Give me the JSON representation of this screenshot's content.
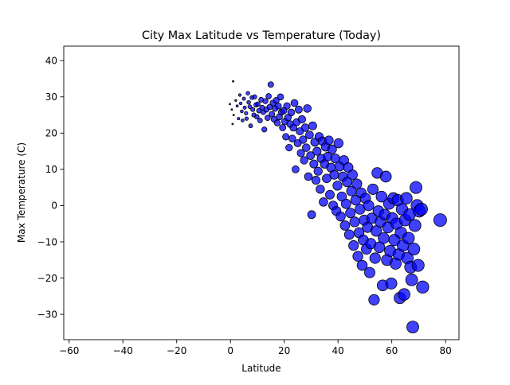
{
  "chart_data": {
    "type": "scatter",
    "title": "City Max Latitude vs Temperature (Today)",
    "xlabel": "Latitude",
    "ylabel": "Max Temperature (C)",
    "xlim": [
      -62,
      85
    ],
    "ylim": [
      -37,
      44
    ],
    "xticks": [
      -60,
      -40,
      -20,
      0,
      20,
      40,
      60,
      80
    ],
    "yticks": [
      -30,
      -20,
      -10,
      0,
      10,
      20,
      30,
      40
    ],
    "grid": false,
    "marker_color": "#0000ff",
    "marker_edge": "#000000",
    "marker_size_encodes": "latitude",
    "points": [
      [
        1,
        34.3
      ],
      [
        -0.2,
        28
      ],
      [
        0.5,
        26.5
      ],
      [
        1.2,
        25
      ],
      [
        0.8,
        22.5
      ],
      [
        2,
        29
      ],
      [
        2.5,
        27.5
      ],
      [
        3,
        24
      ],
      [
        3.5,
        30.5
      ],
      [
        3.8,
        28.2
      ],
      [
        4.2,
        26
      ],
      [
        4.5,
        23.5
      ],
      [
        5,
        29.5
      ],
      [
        5.3,
        27
      ],
      [
        5.8,
        25.5
      ],
      [
        6,
        24
      ],
      [
        6.5,
        31
      ],
      [
        6.8,
        28.5
      ],
      [
        7.2,
        27.3
      ],
      [
        7.5,
        22
      ],
      [
        8,
        29.8
      ],
      [
        8.3,
        26.5
      ],
      [
        8.7,
        25
      ],
      [
        9,
        30
      ],
      [
        9.5,
        27.8
      ],
      [
        9.8,
        24.5
      ],
      [
        10.2,
        28
      ],
      [
        10.6,
        26.2
      ],
      [
        11,
        23.5
      ],
      [
        11.4,
        29.2
      ],
      [
        11.8,
        27
      ],
      [
        12.2,
        25.8
      ],
      [
        12.6,
        21
      ],
      [
        13,
        28.8
      ],
      [
        13.4,
        26.5
      ],
      [
        13.8,
        24.2
      ],
      [
        14.2,
        30.2
      ],
      [
        14.6,
        27.2
      ],
      [
        15,
        33.4
      ],
      [
        15.4,
        25.2
      ],
      [
        15.8,
        28.3
      ],
      [
        16.2,
        23.8
      ],
      [
        16.6,
        26.8
      ],
      [
        17,
        29
      ],
      [
        17.4,
        22.8
      ],
      [
        17.8,
        27.5
      ],
      [
        18.2,
        24.5
      ],
      [
        18.6,
        30
      ],
      [
        19,
        25.8
      ],
      [
        19.4,
        21.5
      ],
      [
        19.8,
        26.2
      ],
      [
        20.2,
        23.2
      ],
      [
        20.6,
        19
      ],
      [
        21,
        27.5
      ],
      [
        21.4,
        24.3
      ],
      [
        21.8,
        16
      ],
      [
        22.2,
        22.5
      ],
      [
        22.6,
        25.7
      ],
      [
        23,
        18.5
      ],
      [
        23.4,
        21.5
      ],
      [
        23.8,
        28.3
      ],
      [
        24.2,
        10
      ],
      [
        24.6,
        23
      ],
      [
        25,
        17.2
      ],
      [
        25.4,
        26.5
      ],
      [
        25.8,
        20.5
      ],
      [
        26.2,
        14.5
      ],
      [
        26.6,
        23.8
      ],
      [
        27,
        18.2
      ],
      [
        27.4,
        12.5
      ],
      [
        27.8,
        21.5
      ],
      [
        28.2,
        16
      ],
      [
        28.6,
        26.8
      ],
      [
        29,
        8
      ],
      [
        29.4,
        19.5
      ],
      [
        29.8,
        13.8
      ],
      [
        30.2,
        -2.5
      ],
      [
        30.6,
        22
      ],
      [
        31,
        11.5
      ],
      [
        31.4,
        17.5
      ],
      [
        31.8,
        7
      ],
      [
        32.2,
        15
      ],
      [
        32.6,
        9.5
      ],
      [
        33,
        19
      ],
      [
        33.4,
        4.5
      ],
      [
        33.8,
        13
      ],
      [
        34.2,
        17.8
      ],
      [
        34.6,
        1
      ],
      [
        35,
        11.5
      ],
      [
        35.4,
        16.2
      ],
      [
        35.8,
        7.5
      ],
      [
        36.2,
        13.5
      ],
      [
        36.6,
        18
      ],
      [
        37,
        3
      ],
      [
        37.4,
        10.5
      ],
      [
        37.8,
        15.5
      ],
      [
        38.2,
        0
      ],
      [
        38.6,
        8.5
      ],
      [
        39,
        13
      ],
      [
        39.4,
        -1.5
      ],
      [
        39.8,
        5.5
      ],
      [
        40.2,
        17.2
      ],
      [
        40.6,
        10.8
      ],
      [
        41,
        -3
      ],
      [
        41.4,
        2.5
      ],
      [
        41.8,
        8
      ],
      [
        42.2,
        12.5
      ],
      [
        42.6,
        -5.5
      ],
      [
        43,
        0.5
      ],
      [
        43.4,
        6.5
      ],
      [
        43.8,
        10.5
      ],
      [
        44.2,
        -8
      ],
      [
        44.6,
        -2
      ],
      [
        45,
        4
      ],
      [
        45.4,
        8.5
      ],
      [
        45.8,
        -11
      ],
      [
        46.2,
        -4.5
      ],
      [
        46.6,
        1.5
      ],
      [
        47,
        6
      ],
      [
        47.4,
        -14
      ],
      [
        47.8,
        -7.5
      ],
      [
        48.2,
        -1
      ],
      [
        48.6,
        3.5
      ],
      [
        49,
        -16.5
      ],
      [
        49.4,
        -9.5
      ],
      [
        49.8,
        -4
      ],
      [
        50.2,
        2
      ],
      [
        50.6,
        -12
      ],
      [
        51,
        -6
      ],
      [
        51.4,
        0
      ],
      [
        51.8,
        -18.5
      ],
      [
        52.2,
        -10.5
      ],
      [
        52.6,
        -3.5
      ],
      [
        53,
        4.5
      ],
      [
        53.4,
        -26
      ],
      [
        53.8,
        -14.5
      ],
      [
        54.2,
        -7
      ],
      [
        54.6,
        9
      ],
      [
        55,
        -1.5
      ],
      [
        55.4,
        -11.5
      ],
      [
        55.8,
        -4.5
      ],
      [
        56.2,
        2.5
      ],
      [
        56.6,
        -22
      ],
      [
        57,
        -9
      ],
      [
        57.4,
        -2.5
      ],
      [
        57.8,
        8
      ],
      [
        58.2,
        -15
      ],
      [
        58.6,
        -6
      ],
      [
        59,
        0.5
      ],
      [
        59.4,
        -12.5
      ],
      [
        59.8,
        -21.5
      ],
      [
        60.2,
        -3.5
      ],
      [
        60.6,
        2
      ],
      [
        61,
        -9.5
      ],
      [
        61.4,
        -16
      ],
      [
        61.8,
        -5
      ],
      [
        62.2,
        1.5
      ],
      [
        62.6,
        -13.5
      ],
      [
        63,
        -25.5
      ],
      [
        63.4,
        -7.5
      ],
      [
        63.8,
        -1
      ],
      [
        64.2,
        -11
      ],
      [
        64.6,
        -24.5
      ],
      [
        65,
        -4
      ],
      [
        65.4,
        2
      ],
      [
        65.8,
        -14.5
      ],
      [
        66.2,
        -9
      ],
      [
        66.6,
        -2.5
      ],
      [
        67,
        -17
      ],
      [
        67.4,
        -20.5
      ],
      [
        67.8,
        -33.5
      ],
      [
        68.2,
        -12
      ],
      [
        68.6,
        -5.5
      ],
      [
        69,
        5
      ],
      [
        69.4,
        0
      ],
      [
        69.8,
        -16.5
      ],
      [
        70.2,
        -1.5
      ],
      [
        71,
        -1
      ],
      [
        71.5,
        -22.5
      ],
      [
        78,
        -4
      ]
    ]
  }
}
